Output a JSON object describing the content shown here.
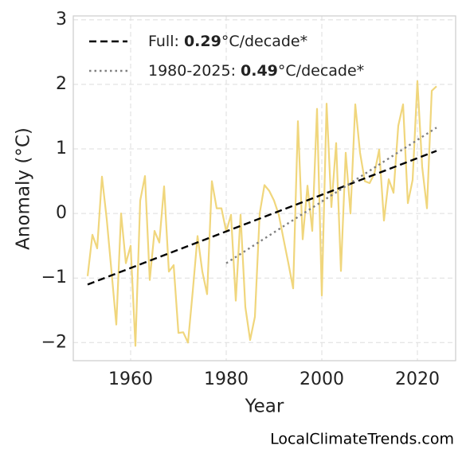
{
  "chart_data": {
    "type": "line",
    "xlabel": "Year",
    "ylabel": "Anomaly (°C)",
    "source": "LocalClimateTrends.com",
    "x": [
      1951,
      1952,
      1953,
      1954,
      1955,
      1956,
      1957,
      1958,
      1959,
      1960,
      1961,
      1962,
      1963,
      1964,
      1965,
      1966,
      1967,
      1968,
      1969,
      1970,
      1971,
      1972,
      1973,
      1974,
      1975,
      1976,
      1977,
      1978,
      1979,
      1980,
      1981,
      1982,
      1983,
      1984,
      1985,
      1986,
      1987,
      1988,
      1989,
      1990,
      1991,
      1992,
      1993,
      1994,
      1995,
      1996,
      1997,
      1998,
      1999,
      2000,
      2001,
      2002,
      2003,
      2004,
      2005,
      2006,
      2007,
      2008,
      2009,
      2010,
      2011,
      2012,
      2013,
      2014,
      2015,
      2016,
      2017,
      2018,
      2019,
      2020,
      2021,
      2022,
      2023,
      2024
    ],
    "series": [
      {
        "color": "#f0d67c",
        "values": [
          -0.97,
          -0.33,
          -0.54,
          0.57,
          -0.09,
          -0.9,
          -1.72,
          0.0,
          -0.77,
          -0.5,
          -2.05,
          0.2,
          0.58,
          -1.03,
          -0.27,
          -0.45,
          0.42,
          -0.9,
          -0.8,
          -1.85,
          -1.84,
          -2.0,
          -1.2,
          -0.35,
          -0.9,
          -1.25,
          0.5,
          0.08,
          0.08,
          -0.28,
          -0.02,
          -1.35,
          -0.02,
          -1.45,
          -1.96,
          -1.6,
          0.0,
          0.44,
          0.35,
          0.2,
          -0.02,
          -0.4,
          -0.77,
          -1.16,
          1.43,
          -0.4,
          0.43,
          -0.27,
          1.62,
          -1.27,
          1.7,
          0.1,
          1.09,
          -0.89,
          0.94,
          0.0,
          1.69,
          0.94,
          0.5,
          0.47,
          0.62,
          0.99,
          -0.11,
          0.53,
          0.32,
          1.36,
          1.69,
          0.16,
          0.52,
          2.05,
          0.72,
          0.08,
          1.9,
          1.97
        ]
      },
      {
        "name": "Full: 0.29°C/decade*",
        "color": "#000000",
        "dash": "dashed",
        "x": [
          1951,
          2024
        ],
        "values": [
          -1.1,
          0.97
        ]
      },
      {
        "name": "1980-2025: 0.49°C/decade*",
        "color": "#808080",
        "dash": "dotted",
        "x": [
          1980,
          2024
        ],
        "values": [
          -0.77,
          1.33
        ]
      }
    ],
    "xlim": [
      1948,
      2028
    ],
    "xticks": [
      1960,
      1980,
      2000,
      2020
    ],
    "ylim": [
      -2.28,
      3.06
    ],
    "yticks": [
      {
        "value": -2,
        "label": "−2"
      },
      {
        "value": -1,
        "label": "−1"
      },
      0,
      1,
      2,
      3
    ],
    "grid": true,
    "legend": "upper left"
  }
}
